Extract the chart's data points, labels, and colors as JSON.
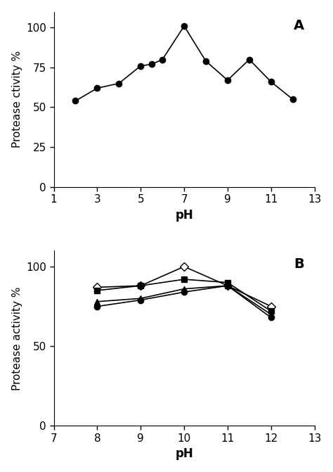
{
  "panel_A": {
    "x": [
      2,
      3,
      4,
      5,
      5.5,
      6,
      7,
      8,
      9,
      10,
      11,
      12
    ],
    "y": [
      54,
      62,
      65,
      76,
      77,
      80,
      101,
      79,
      67,
      80,
      66,
      55
    ],
    "xlabel": "pH",
    "ylabel": "Protease ctivity %",
    "xlim": [
      1,
      13
    ],
    "ylim": [
      0,
      110
    ],
    "xticks": [
      1,
      3,
      5,
      7,
      9,
      11,
      13
    ],
    "yticks": [
      0,
      25,
      50,
      75,
      100
    ],
    "label": "A"
  },
  "panel_B": {
    "series": [
      {
        "x": [
          8,
          9,
          10,
          11,
          12
        ],
        "y": [
          87,
          88,
          100,
          88,
          75
        ],
        "marker": "D",
        "mfc": "white",
        "markersize": 6
      },
      {
        "x": [
          8,
          9,
          10,
          11,
          12
        ],
        "y": [
          85,
          88,
          92,
          90,
          72
        ],
        "marker": "s",
        "mfc": "black",
        "markersize": 6
      },
      {
        "x": [
          8,
          9,
          10,
          11,
          12
        ],
        "y": [
          78,
          80,
          86,
          88,
          70
        ],
        "marker": "^",
        "mfc": "black",
        "markersize": 6
      },
      {
        "x": [
          8,
          9,
          10,
          11,
          12
        ],
        "y": [
          75,
          79,
          84,
          88,
          68
        ],
        "marker": "o",
        "mfc": "black",
        "markersize": 6
      }
    ],
    "xlabel": "pH",
    "ylabel": "Protease activity %",
    "xlim": [
      7,
      13
    ],
    "ylim": [
      0,
      110
    ],
    "xticks": [
      7,
      8,
      9,
      10,
      11,
      12,
      13
    ],
    "yticks": [
      0,
      50,
      100
    ],
    "label": "B"
  },
  "line_color": "#000000",
  "marker_color": "#000000",
  "bg_color": "#ffffff",
  "markersize_A": 6,
  "linewidth": 1.2,
  "tick_fontsize": 11,
  "label_fontsize": 12,
  "panel_label_fontsize": 14
}
